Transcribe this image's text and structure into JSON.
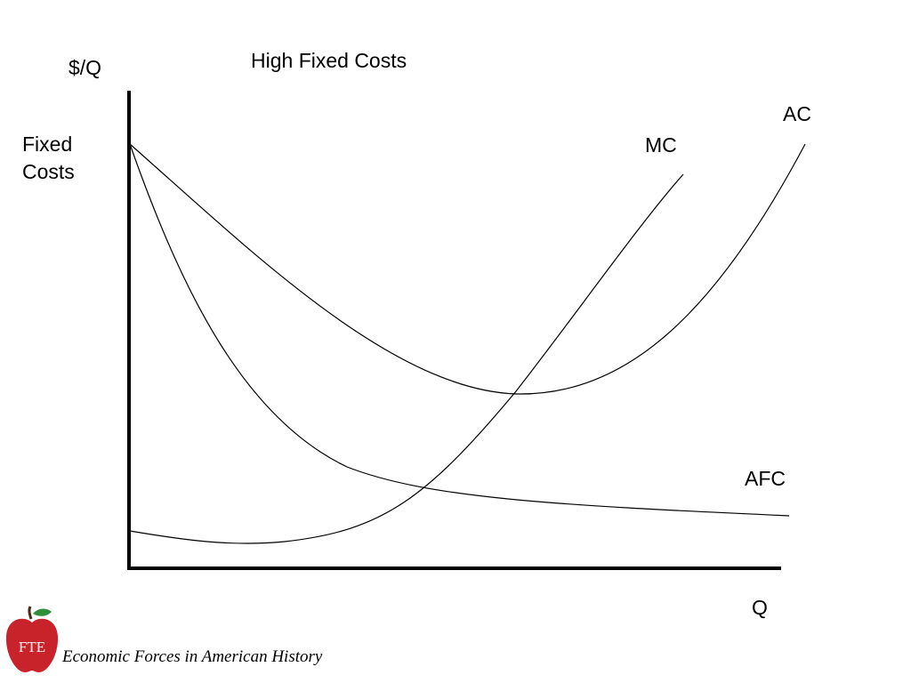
{
  "diagram": {
    "title": "High Fixed Costs",
    "y_axis_label": "$/Q",
    "x_axis_label": "Q",
    "fixed_costs_label_line1": "Fixed",
    "fixed_costs_label_line2": "Costs",
    "curves": {
      "mc": "MC",
      "ac": "AC",
      "afc": "AFC"
    }
  },
  "footer": {
    "logo_text": "FTE",
    "caption": "Economic Forces in American History"
  },
  "colors": {
    "apple_red": "#c8222a",
    "leaf_green": "#2f8f3a",
    "stem_brown": "#4a2a12"
  }
}
